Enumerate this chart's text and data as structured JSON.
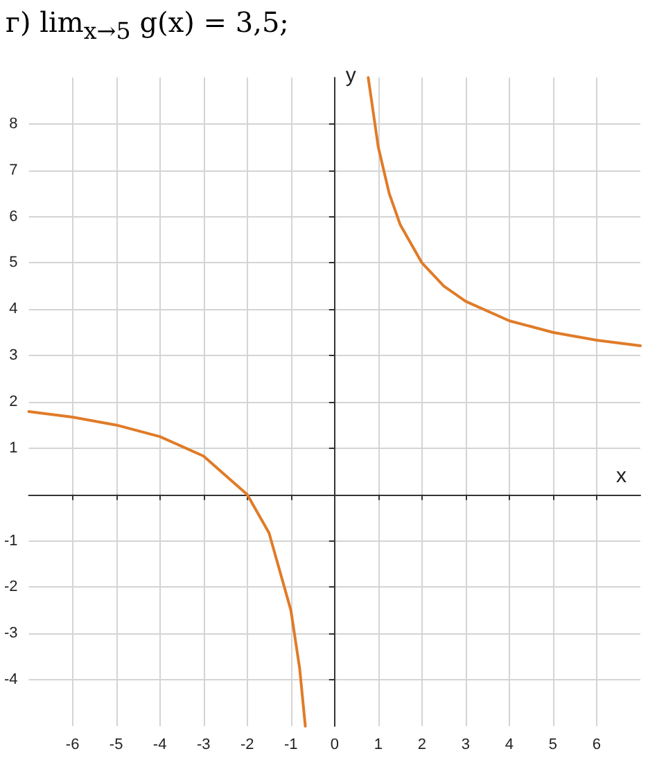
{
  "chart_data": {
    "type": "line",
    "title": "г) lim$_{x→5}$ g(x) = 3,5;",
    "xlabel": "x",
    "ylabel": "y",
    "x": [
      -7,
      -6,
      -5,
      -4,
      -3,
      -2,
      -1.5,
      -1,
      -0.8,
      -0.67,
      0,
      0.77,
      1,
      1.25,
      1.5,
      2,
      2.5,
      3,
      4,
      5,
      6,
      7
    ],
    "series": [
      {
        "color": "#e07b28",
        "values": [
          1.79,
          1.67,
          1.5,
          1.25,
          0.83,
          0,
          -0.83,
          -2.5,
          -3.75,
          -5,
          null,
          9,
          7.5,
          6.5,
          5.83,
          5,
          4.5,
          4.17,
          3.75,
          3.5,
          3.33,
          3.21
        ]
      }
    ],
    "xlim": [
      -7,
      7
    ],
    "ylim": [
      -5,
      9
    ],
    "xticks": [
      -6,
      -5,
      -4,
      -3,
      -2,
      -1,
      0,
      1,
      2,
      3,
      4,
      5,
      6
    ],
    "yticks": [
      -4,
      -3,
      -2,
      -1,
      1,
      2,
      3,
      4,
      5,
      6,
      7,
      8
    ],
    "grid": true,
    "marker": "none",
    "line_style": "solid"
  }
}
